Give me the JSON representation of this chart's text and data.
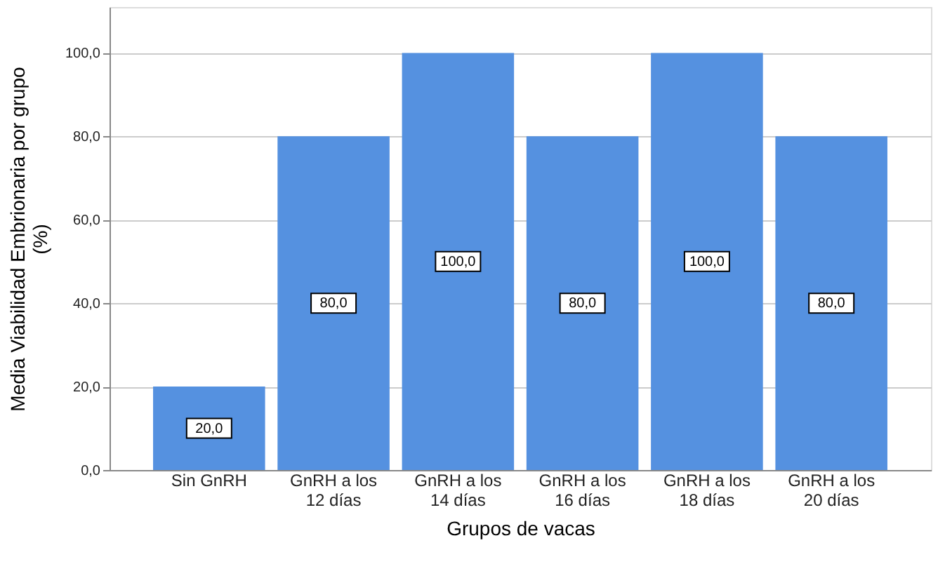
{
  "chart_data": {
    "type": "bar",
    "xlabel": "Grupos de vacas",
    "ylabel": "Media Viabilidad Embrionaria por grupo (%)",
    "categories": [
      "Sin GnRH",
      "GnRH a los 12 días",
      "GnRH a los 14 días",
      "GnRH a los 16 días",
      "GnRH a los 18 días",
      "GnRH a los 20 días"
    ],
    "values": [
      20,
      80,
      100,
      80,
      100,
      80
    ],
    "value_labels": [
      "20,0",
      "80,0",
      "100,0",
      "80,0",
      "100,0",
      "80,0"
    ],
    "color": "#5591e0",
    "ylim": [
      0,
      111
    ],
    "yticks": [
      {
        "value": 0,
        "label": "0,0"
      },
      {
        "value": 20,
        "label": "20,0"
      },
      {
        "value": 40,
        "label": "40,0"
      },
      {
        "value": 60,
        "label": "60,0"
      },
      {
        "value": 80,
        "label": "80,0"
      },
      {
        "value": 100,
        "label": "100,0"
      }
    ],
    "grid": "y"
  }
}
